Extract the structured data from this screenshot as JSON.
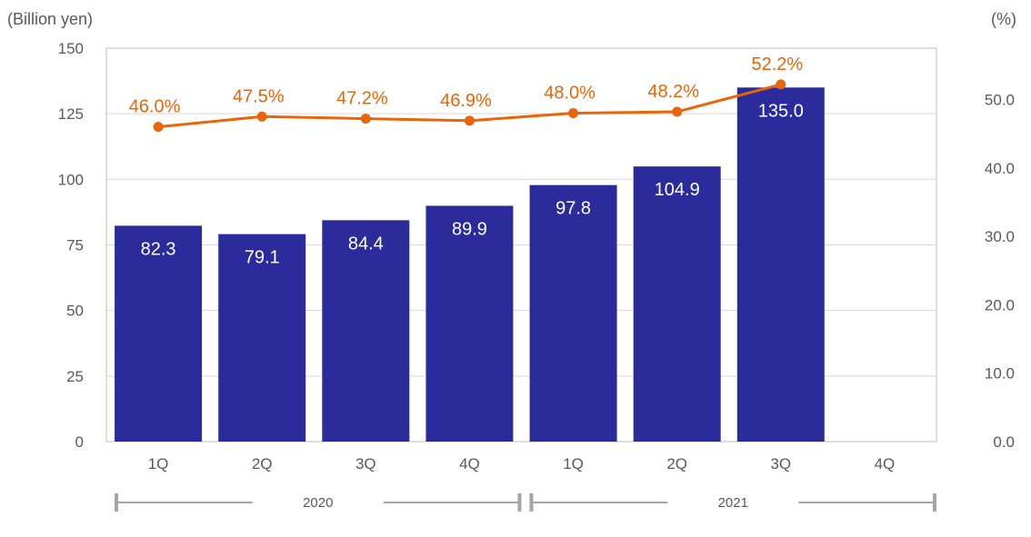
{
  "chart_data": {
    "type": "bar",
    "y_left_label": "(Billion yen)",
    "y_right_label": "(%)",
    "categories": [
      "1Q",
      "2Q",
      "3Q",
      "4Q",
      "1Q",
      "2Q",
      "3Q",
      "4Q"
    ],
    "year_groups": [
      {
        "label": "2020",
        "from": 0,
        "to": 3
      },
      {
        "label": "2021",
        "from": 4,
        "to": 7
      }
    ],
    "ylim_left": [
      0,
      150
    ],
    "yticks_left": [
      0,
      25,
      50,
      75,
      100,
      125,
      150
    ],
    "ylim_right": [
      0,
      57.5
    ],
    "yticks_right": [
      "0.0",
      "10.0",
      "20.0",
      "30.0",
      "40.0",
      "50.0"
    ],
    "series": [
      {
        "type": "bar",
        "color": "#2B2B9C",
        "values": [
          82.3,
          79.1,
          84.4,
          89.9,
          97.8,
          104.9,
          135.0,
          null
        ],
        "labels": [
          "82.3",
          "79.1",
          "84.4",
          "89.9",
          "97.8",
          "104.9",
          "135.0",
          ""
        ]
      },
      {
        "type": "line",
        "axis": "right",
        "color": "#E8650A",
        "values": [
          46.0,
          47.5,
          47.2,
          46.9,
          48.0,
          48.2,
          52.2,
          null
        ],
        "labels": [
          "46.0%",
          "47.5%",
          "47.2%",
          "46.9%",
          "48.0%",
          "48.2%",
          "52.2%",
          ""
        ]
      }
    ],
    "grid": true,
    "legend": "none"
  }
}
